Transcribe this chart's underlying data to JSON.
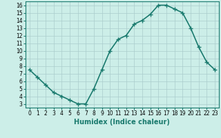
{
  "x": [
    0,
    1,
    2,
    3,
    4,
    5,
    6,
    7,
    8,
    9,
    10,
    11,
    12,
    13,
    14,
    15,
    16,
    17,
    18,
    19,
    20,
    21,
    22,
    23
  ],
  "y": [
    7.5,
    6.5,
    5.5,
    4.5,
    4.0,
    3.5,
    3.0,
    3.0,
    5.0,
    7.5,
    10.0,
    11.5,
    12.0,
    13.5,
    14.0,
    14.8,
    16.0,
    16.0,
    15.5,
    15.0,
    13.0,
    10.5,
    8.5,
    7.5
  ],
  "line_color": "#1a7a6e",
  "marker": "+",
  "marker_size": 4,
  "bg_color": "#cceee8",
  "grid_color": "#aacccc",
  "xlabel": "Humidex (Indice chaleur)",
  "xlabel_fontsize": 7,
  "xlim": [
    -0.5,
    23.5
  ],
  "ylim": [
    2.5,
    16.5
  ],
  "yticks": [
    3,
    4,
    5,
    6,
    7,
    8,
    9,
    10,
    11,
    12,
    13,
    14,
    15,
    16
  ],
  "xticks": [
    0,
    1,
    2,
    3,
    4,
    5,
    6,
    7,
    8,
    9,
    10,
    11,
    12,
    13,
    14,
    15,
    16,
    17,
    18,
    19,
    20,
    21,
    22,
    23
  ],
  "tick_fontsize": 5.5,
  "linewidth": 1.2,
  "marker_linewidth": 1.0
}
